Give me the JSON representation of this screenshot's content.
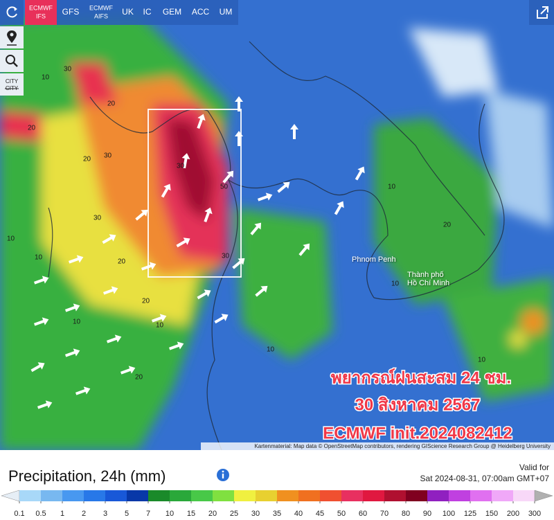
{
  "toolbar": {
    "models": [
      {
        "lines": [
          "ECMWF",
          "IFS"
        ],
        "active": true
      },
      {
        "lines": [
          "GFS"
        ],
        "active": false
      },
      {
        "lines": [
          "ECMWF",
          "AIFS"
        ],
        "active": false
      },
      {
        "lines": [
          "UK"
        ],
        "active": false
      },
      {
        "lines": [
          "IC"
        ],
        "active": false
      },
      {
        "lines": [
          "GEM"
        ],
        "active": false
      },
      {
        "lines": [
          "ACC"
        ],
        "active": false
      },
      {
        "lines": [
          "UM"
        ],
        "active": false
      }
    ],
    "city_labels": [
      "CITY",
      "CITY"
    ]
  },
  "map": {
    "places": [
      [
        "Phnom Penh"
      ],
      [
        "Thành phố",
        "Hồ Chí Minh"
      ]
    ],
    "contour_labels": [
      "30",
      "10",
      "20",
      "20",
      "30",
      "20",
      "30",
      "50",
      "30",
      "30",
      "20",
      "10",
      "20",
      "10",
      "10",
      "10",
      "20",
      "10",
      "10",
      "20",
      "10",
      "10"
    ],
    "overlay": [
      "พยากรณ์ฝนสะสม 24 ชม.",
      "30 สิงหาคม 2567",
      "ECMWF init.2024082412"
    ],
    "attribution": "Kartenmaterial: Map data © OpenStreetMap contributors, rendering GIScience Research Group @ Heidelberg University"
  },
  "legend": {
    "title": "Precipitation, 24h (mm)",
    "valid_label": "Valid for",
    "valid_time": "Sat 2024-08-31, 07:00am GMT+07",
    "ticks": [
      0.1,
      0.5,
      1,
      2,
      3,
      5,
      7,
      10,
      15,
      20,
      25,
      30,
      35,
      40,
      45,
      50,
      60,
      70,
      80,
      90,
      100,
      125,
      150,
      200,
      300
    ],
    "colors": [
      "#e6eef6",
      "#a8d8f8",
      "#78b8f0",
      "#4898f0",
      "#2878e8",
      "#1858d8",
      "#0838a8",
      "#1a8a2a",
      "#2aa83a",
      "#48c848",
      "#80e040",
      "#f0f040",
      "#e8d030",
      "#f09020",
      "#f07020",
      "#f05030",
      "#e83060",
      "#e01840",
      "#b01030",
      "#800020",
      "#9020c0",
      "#c040e0",
      "#e070f0",
      "#f0a8f8",
      "#f8d8f8",
      "#b0b0b0"
    ]
  }
}
